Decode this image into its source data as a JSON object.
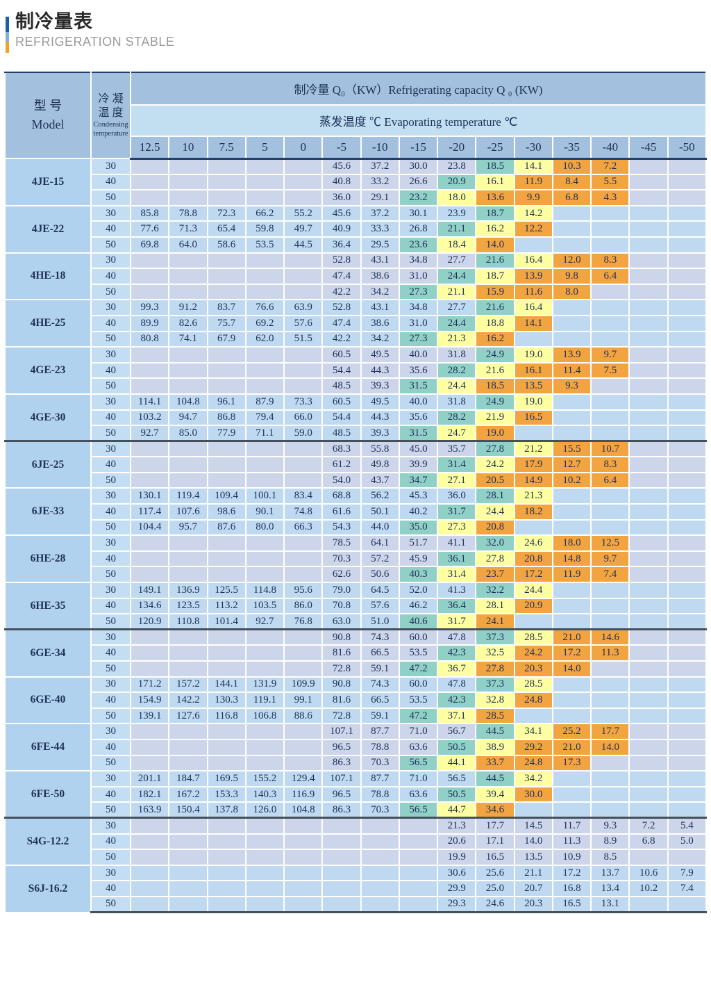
{
  "page": {
    "title": "制冷量表",
    "subtitle": "REFRIGERATION STABLE"
  },
  "colors": {
    "accent_bar_top": "#1b5fa5",
    "accent_bar_mid": "#7fb1d9",
    "accent_bar_bottom": "#f5a224",
    "header_blue": "#a3c1de",
    "band_light_blue": "#c2dff2",
    "model_column": "#b1d2ee",
    "temp_column": "#c3ddf3",
    "group_tint_lavender": "#ccd5e9",
    "group_tint_blue": "#bed9f0",
    "highlight_teal": "#90d0c6",
    "highlight_yellow": "#feffa0",
    "highlight_orange": "#f2a440"
  },
  "table": {
    "model_header_zh": "型 号",
    "model_header_en": "Model",
    "cond_zh1": "冷 凝",
    "cond_zh2": "温 度",
    "cond_en1": "Condensing",
    "cond_en2": "temperature",
    "capacity_header": "制冷量 Q₀（KW）Refrigerating capacity Q ₀ (KW)",
    "evap_header": "蒸发温度  ℃ Evaporating temperature ℃",
    "columns": [
      "12.5",
      "10",
      "7.5",
      "5",
      "0",
      "-5",
      "-10",
      "-15",
      "-20",
      "-25",
      "-30",
      "-35",
      "-40",
      "-45",
      "-50"
    ],
    "condensing_temps": [
      "30",
      "40",
      "50"
    ],
    "groups": [
      {
        "model": "4JE-15",
        "tint": "lav",
        "sep_before": false,
        "rows": [
          [
            "",
            "",
            "",
            "",
            "",
            "45.6",
            "37.2",
            "30.0",
            "23.8",
            "18.5|T",
            "14.1|Y",
            "10.3|O",
            "7.2|O",
            "",
            ""
          ],
          [
            "",
            "",
            "",
            "",
            "",
            "40.8",
            "33.2",
            "26.6",
            "20.9|T",
            "16.1|Y",
            "11.9|O",
            "8.4|O",
            "5.5|O",
            "",
            ""
          ],
          [
            "",
            "",
            "",
            "",
            "",
            "36.0",
            "29.1",
            "23.2|T",
            "18.0|Y",
            "13.6|O",
            "9.9|O",
            "6.8|O",
            "4.3|O",
            "",
            ""
          ]
        ]
      },
      {
        "model": "4JE-22",
        "tint": "blu",
        "sep_before": false,
        "rows": [
          [
            "85.8",
            "78.8",
            "72.3",
            "66.2",
            "55.2",
            "45.6",
            "37.2",
            "30.1",
            "23.9",
            "18.7|T",
            "14.2|Y",
            "",
            "",
            "",
            ""
          ],
          [
            "77.6",
            "71.3",
            "65.4",
            "59.8",
            "49.7",
            "40.9",
            "33.3",
            "26.8",
            "21.1|T",
            "16.2|Y",
            "12.2|O",
            "",
            "",
            "",
            ""
          ],
          [
            "69.8",
            "64.0",
            "58.6",
            "53.5",
            "44.5",
            "36.4",
            "29.5",
            "23.6|T",
            "18.4|Y",
            "14.0|O",
            "",
            "",
            "",
            "",
            ""
          ]
        ]
      },
      {
        "model": "4HE-18",
        "tint": "lav",
        "sep_before": false,
        "rows": [
          [
            "",
            "",
            "",
            "",
            "",
            "52.8",
            "43.1",
            "34.8",
            "27.7",
            "21.6|T",
            "16.4|Y",
            "12.0|O",
            "8.3|O",
            "",
            ""
          ],
          [
            "",
            "",
            "",
            "",
            "",
            "47.4",
            "38.6",
            "31.0",
            "24.4|T",
            "18.7|Y",
            "13.9|O",
            "9.8|O",
            "6.4|O",
            "",
            ""
          ],
          [
            "",
            "",
            "",
            "",
            "",
            "42.2",
            "34.2",
            "27.3|T",
            "21.1|Y",
            "15.9|O",
            "11.6|O",
            "8.0|O",
            "",
            "",
            ""
          ]
        ]
      },
      {
        "model": "4HE-25",
        "tint": "blu",
        "sep_before": false,
        "rows": [
          [
            "99.3",
            "91.2",
            "83.7",
            "76.6",
            "63.9",
            "52.8",
            "43.1",
            "34.8",
            "27.7",
            "21.6|T",
            "16.4|Y",
            "",
            "",
            "",
            ""
          ],
          [
            "89.9",
            "82.6",
            "75.7",
            "69.2",
            "57.6",
            "47.4",
            "38.6",
            "31.0",
            "24.4|T",
            "18.8|Y",
            "14.1|O",
            "",
            "",
            "",
            ""
          ],
          [
            "80.8",
            "74.1",
            "67.9",
            "62.0",
            "51.5",
            "42.2",
            "34.2",
            "27.3|T",
            "21.3|Y",
            "16.2|O",
            "",
            "",
            "",
            "",
            ""
          ]
        ]
      },
      {
        "model": "4GE-23",
        "tint": "lav",
        "sep_before": false,
        "rows": [
          [
            "",
            "",
            "",
            "",
            "",
            "60.5",
            "49.5",
            "40.0",
            "31.8",
            "24.9|T",
            "19.0|Y",
            "13.9|O",
            "9.7|O",
            "",
            ""
          ],
          [
            "",
            "",
            "",
            "",
            "",
            "54.4",
            "44.3",
            "35.6",
            "28.2|T",
            "21.6|Y",
            "16.1|O",
            "11.4|O",
            "7.5|O",
            "",
            ""
          ],
          [
            "",
            "",
            "",
            "",
            "",
            "48.5",
            "39.3",
            "31.5|T",
            "24.4|Y",
            "18.5|O",
            "13.5|O",
            "9.3|O",
            "",
            "",
            ""
          ]
        ]
      },
      {
        "model": "4GE-30",
        "tint": "blu",
        "sep_before": false,
        "rows": [
          [
            "114.1",
            "104.8",
            "96.1",
            "87.9",
            "73.3",
            "60.5",
            "49.5",
            "40.0",
            "31.8",
            "24.9|T",
            "19.0|Y",
            "",
            "",
            "",
            ""
          ],
          [
            "103.2",
            "94.7",
            "86.8",
            "79.4",
            "66.0",
            "54.4",
            "44.3",
            "35.6",
            "28.2|T",
            "21.9|Y",
            "16.5|O",
            "",
            "",
            "",
            ""
          ],
          [
            "92.7",
            "85.0",
            "77.9",
            "71.1",
            "59.0",
            "48.5",
            "39.3",
            "31.5|T",
            "24.7|Y",
            "19.0|O",
            "",
            "",
            "",
            "",
            ""
          ]
        ]
      },
      {
        "model": "6JE-25",
        "tint": "lav",
        "sep_before": true,
        "rows": [
          [
            "",
            "",
            "",
            "",
            "",
            "68.3",
            "55.8",
            "45.0",
            "35.7",
            "27.8|T",
            "21.2|Y",
            "15.5|O",
            "10.7|O",
            "",
            ""
          ],
          [
            "",
            "",
            "",
            "",
            "",
            "61.2",
            "49.8",
            "39.9",
            "31.4|T",
            "24.2|Y",
            "17.9|O",
            "12.7|O",
            "8.3|O",
            "",
            ""
          ],
          [
            "",
            "",
            "",
            "",
            "",
            "54.0",
            "43.7",
            "34.7|T",
            "27.1|Y",
            "20.5|O",
            "14.9|O",
            "10.2|O",
            "6.4|O",
            "",
            ""
          ]
        ]
      },
      {
        "model": "6JE-33",
        "tint": "blu",
        "sep_before": false,
        "rows": [
          [
            "130.1",
            "119.4",
            "109.4",
            "100.1",
            "83.4",
            "68.8",
            "56.2",
            "45.3",
            "36.0",
            "28.1|T",
            "21.3|Y",
            "",
            "",
            "",
            ""
          ],
          [
            "117.4",
            "107.6",
            "98.6",
            "90.1",
            "74.8",
            "61.6",
            "50.1",
            "40.2",
            "31.7|T",
            "24.4|Y",
            "18.2|O",
            "",
            "",
            "",
            ""
          ],
          [
            "104.4",
            "95.7",
            "87.6",
            "80.0",
            "66.3",
            "54.3",
            "44.0",
            "35.0|T",
            "27.3|Y",
            "20.8|O",
            "",
            "",
            "",
            "",
            ""
          ]
        ]
      },
      {
        "model": "6HE-28",
        "tint": "lav",
        "sep_before": false,
        "rows": [
          [
            "",
            "",
            "",
            "",
            "",
            "78.5",
            "64.1",
            "51.7",
            "41.1",
            "32.0|T",
            "24.6|Y",
            "18.0|O",
            "12.5|O",
            "",
            ""
          ],
          [
            "",
            "",
            "",
            "",
            "",
            "70.3",
            "57.2",
            "45.9",
            "36.1|T",
            "27.8|Y",
            "20.8|O",
            "14.8|O",
            "9.7|O",
            "",
            ""
          ],
          [
            "",
            "",
            "",
            "",
            "",
            "62.6",
            "50.6",
            "40.3|T",
            "31.4|Y",
            "23.7|O",
            "17.2|O",
            "11.9|O",
            "7.4|O",
            "",
            ""
          ]
        ]
      },
      {
        "model": "6HE-35",
        "tint": "blu",
        "sep_before": false,
        "rows": [
          [
            "149.1",
            "136.9",
            "125.5",
            "114.8",
            "95.6",
            "79.0",
            "64.5",
            "52.0",
            "41.3",
            "32.2|T",
            "24.4|Y",
            "",
            "",
            "",
            ""
          ],
          [
            "134.6",
            "123.5",
            "113.2",
            "103.5",
            "86.0",
            "70.8",
            "57.6",
            "46.2",
            "36.4|T",
            "28.1|Y",
            "20.9|O",
            "",
            "",
            "",
            ""
          ],
          [
            "120.9",
            "110.8",
            "101.4",
            "92.7",
            "76.8",
            "63.0",
            "51.0",
            "40.6|T",
            "31.7|Y",
            "24.1|O",
            "",
            "",
            "",
            "",
            ""
          ]
        ]
      },
      {
        "model": "6GE-34",
        "tint": "lav",
        "sep_before": true,
        "rows": [
          [
            "",
            "",
            "",
            "",
            "",
            "90.8",
            "74.3",
            "60.0",
            "47.8",
            "37.3|T",
            "28.5|Y",
            "21.0|O",
            "14.6|O",
            "",
            ""
          ],
          [
            "",
            "",
            "",
            "",
            "",
            "81.6",
            "66.5",
            "53.5",
            "42.3|T",
            "32.5|Y",
            "24.2|O",
            "17.2|O",
            "11.3|O",
            "",
            ""
          ],
          [
            "",
            "",
            "",
            "",
            "",
            "72.8",
            "59.1",
            "47.2|T",
            "36.7|Y",
            "27.8|O",
            "20.3|O",
            "14.0|O",
            "",
            "",
            ""
          ]
        ]
      },
      {
        "model": "6GE-40",
        "tint": "blu",
        "sep_before": false,
        "rows": [
          [
            "171.2",
            "157.2",
            "144.1",
            "131.9",
            "109.9",
            "90.8",
            "74.3",
            "60.0",
            "47.8",
            "37.3|T",
            "28.5|Y",
            "",
            "",
            "",
            ""
          ],
          [
            "154.9",
            "142.2",
            "130.3",
            "119.1",
            "99.1",
            "81.6",
            "66.5",
            "53.5",
            "42.3|T",
            "32.8|Y",
            "24.8|O",
            "",
            "",
            "",
            ""
          ],
          [
            "139.1",
            "127.6",
            "116.8",
            "106.8",
            "88.6",
            "72.8",
            "59.1",
            "47.2|T",
            "37.1|Y",
            "28.5|O",
            "",
            "",
            "",
            "",
            ""
          ]
        ]
      },
      {
        "model": "6FE-44",
        "tint": "lav",
        "sep_before": false,
        "rows": [
          [
            "",
            "",
            "",
            "",
            "",
            "107.1",
            "87.7",
            "71.0",
            "56.7",
            "44.5|T",
            "34.1|Y",
            "25.2|O",
            "17.7|O",
            "",
            ""
          ],
          [
            "",
            "",
            "",
            "",
            "",
            "96.5",
            "78.8",
            "63.6",
            "50.5|T",
            "38.9|Y",
            "29.2|O",
            "21.0|O",
            "14.0|O",
            "",
            ""
          ],
          [
            "",
            "",
            "",
            "",
            "",
            "86.3",
            "70.3",
            "56.5|T",
            "44.1|Y",
            "33.7|O",
            "24.8|O",
            "17.3|O",
            "",
            "",
            ""
          ]
        ]
      },
      {
        "model": "6FE-50",
        "tint": "blu",
        "sep_before": false,
        "rows": [
          [
            "201.1",
            "184.7",
            "169.5",
            "155.2",
            "129.4",
            "107.1",
            "87.7",
            "71.0",
            "56.5",
            "44.5|T",
            "34.2|Y",
            "",
            "",
            "",
            ""
          ],
          [
            "182.1",
            "167.2",
            "153.3",
            "140.3",
            "116.9",
            "96.5",
            "78.8",
            "63.6",
            "50.5|T",
            "39.4|Y",
            "30.0|O",
            "",
            "",
            "",
            ""
          ],
          [
            "163.9",
            "150.4",
            "137.8",
            "126.0",
            "104.8",
            "86.3",
            "70.3",
            "56.5|T",
            "44.7|Y",
            "34.6|O",
            "",
            "",
            "",
            "",
            ""
          ]
        ]
      },
      {
        "model": "S4G-12.2",
        "tint": "lav",
        "sep_before": true,
        "rows": [
          [
            "",
            "",
            "",
            "",
            "",
            "",
            "",
            "",
            "21.3",
            "17.7",
            "14.5",
            "11.7",
            "9.3",
            "7.2",
            "5.4"
          ],
          [
            "",
            "",
            "",
            "",
            "",
            "",
            "",
            "",
            "20.6",
            "17.1",
            "14.0",
            "11.3",
            "8.9",
            "6.8",
            "5.0"
          ],
          [
            "",
            "",
            "",
            "",
            "",
            "",
            "",
            "",
            "19.9",
            "16.5",
            "13.5",
            "10.9",
            "8.5",
            "",
            ""
          ]
        ]
      },
      {
        "model": "S6J-16.2",
        "tint": "blu",
        "sep_before": false,
        "rows": [
          [
            "",
            "",
            "",
            "",
            "",
            "",
            "",
            "",
            "30.6",
            "25.6",
            "21.1",
            "17.2",
            "13.7",
            "10.6",
            "7.9"
          ],
          [
            "",
            "",
            "",
            "",
            "",
            "",
            "",
            "",
            "29.9",
            "25.0",
            "20.7",
            "16.8",
            "13.4",
            "10.2",
            "7.4"
          ],
          [
            "",
            "",
            "",
            "",
            "",
            "",
            "",
            "",
            "29.3",
            "24.6",
            "20.3",
            "16.5",
            "13.1",
            "",
            ""
          ]
        ]
      }
    ]
  }
}
